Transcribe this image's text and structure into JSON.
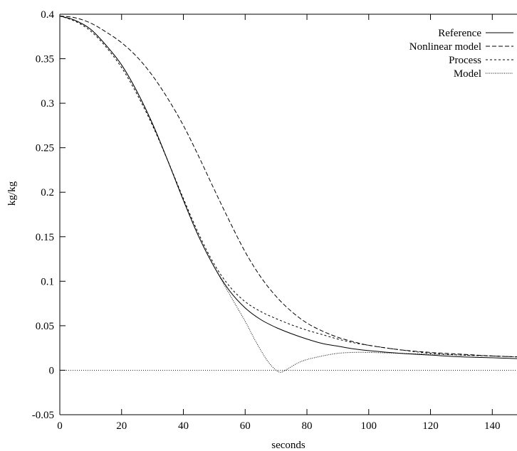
{
  "chart_data": {
    "type": "line",
    "title": "",
    "xlabel": "seconds",
    "ylabel": "kg/kg",
    "xlim": [
      0,
      148
    ],
    "ylim": [
      -0.05,
      0.4
    ],
    "xticks": [
      0,
      20,
      40,
      60,
      80,
      100,
      120,
      140
    ],
    "yticks": [
      -0.05,
      0,
      0.05,
      0.1,
      0.15,
      0.2,
      0.25,
      0.3,
      0.35,
      0.4
    ],
    "ytick_labels": [
      "-0.05",
      "0",
      "0.05",
      "0.1",
      "0.15",
      "0.2",
      "0.25",
      "0.3",
      "0.35",
      "0.4"
    ],
    "grid": false,
    "legend_position": "top-right",
    "zero_line": {
      "y": 0,
      "style": "dotted"
    },
    "series": [
      {
        "name": "Reference",
        "dash": "solid",
        "x": [
          0,
          5,
          10,
          15,
          20,
          25,
          30,
          35,
          40,
          45,
          50,
          55,
          60,
          65,
          70,
          75,
          80,
          85,
          90,
          95,
          100,
          110,
          120,
          130,
          140,
          148
        ],
        "y": [
          0.398,
          0.393,
          0.383,
          0.365,
          0.343,
          0.313,
          0.277,
          0.235,
          0.191,
          0.15,
          0.116,
          0.089,
          0.07,
          0.057,
          0.048,
          0.041,
          0.035,
          0.03,
          0.027,
          0.024,
          0.022,
          0.019,
          0.017,
          0.015,
          0.014,
          0.013
        ]
      },
      {
        "name": "Nonlinear model",
        "dash": "dashed",
        "x": [
          0,
          5,
          10,
          15,
          20,
          25,
          30,
          35,
          40,
          45,
          50,
          55,
          60,
          65,
          70,
          75,
          80,
          85,
          90,
          95,
          100,
          110,
          120,
          130,
          140,
          148
        ],
        "y": [
          0.398,
          0.396,
          0.39,
          0.38,
          0.368,
          0.352,
          0.331,
          0.305,
          0.275,
          0.24,
          0.203,
          0.167,
          0.133,
          0.105,
          0.083,
          0.066,
          0.053,
          0.044,
          0.037,
          0.032,
          0.028,
          0.023,
          0.02,
          0.018,
          0.016,
          0.015
        ]
      },
      {
        "name": "Process",
        "dash": "dotted",
        "x": [
          0,
          5,
          10,
          15,
          20,
          25,
          30,
          35,
          40,
          45,
          50,
          55,
          60,
          65,
          70,
          75,
          80,
          85,
          90,
          95,
          100,
          110,
          120,
          130,
          140,
          148
        ],
        "y": [
          0.398,
          0.392,
          0.381,
          0.363,
          0.34,
          0.31,
          0.275,
          0.235,
          0.193,
          0.153,
          0.119,
          0.094,
          0.077,
          0.066,
          0.058,
          0.051,
          0.045,
          0.04,
          0.035,
          0.031,
          0.028,
          0.023,
          0.019,
          0.017,
          0.016,
          0.015
        ]
      },
      {
        "name": "Model",
        "dash": "fine-dotted",
        "x": [
          0,
          5,
          10,
          15,
          20,
          25,
          30,
          35,
          40,
          45,
          50,
          55,
          60,
          63,
          66,
          68,
          70,
          71,
          72,
          74,
          77,
          80,
          85,
          90,
          95,
          100,
          110,
          120,
          130,
          140,
          148
        ],
        "y": [
          0.398,
          0.393,
          0.383,
          0.365,
          0.343,
          0.313,
          0.277,
          0.235,
          0.191,
          0.15,
          0.116,
          0.085,
          0.055,
          0.035,
          0.017,
          0.007,
          0.0,
          -0.002,
          -0.002,
          0.002,
          0.008,
          0.012,
          0.016,
          0.019,
          0.02,
          0.02,
          0.019,
          0.018,
          0.017,
          0.016,
          0.015
        ]
      }
    ]
  }
}
